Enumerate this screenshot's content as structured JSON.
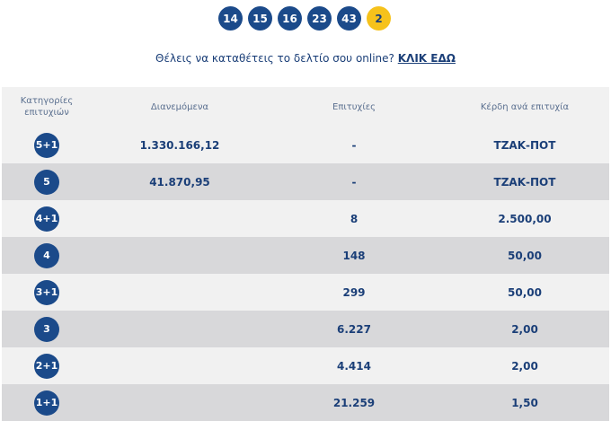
{
  "draw": {
    "numbers": [
      "14",
      "15",
      "16",
      "23",
      "43"
    ],
    "joker": "2"
  },
  "promo": {
    "text": "Θέλεις να καταθέτεις το δελτίο σου online? ",
    "link": "ΚΛΙΚ ΕΔΩ"
  },
  "table": {
    "headers": {
      "category": "Κατηγορίες επιτυχιών",
      "distributed": "Διανεμόμενα",
      "winners": "Επιτυχίες",
      "prize": "Κέρδη ανά επιτυχία"
    },
    "rows": [
      {
        "category": "5+1",
        "distributed": "1.330.166,12",
        "winners": "-",
        "prize": "ΤΖΑΚ-ΠΟΤ"
      },
      {
        "category": "5",
        "distributed": "41.870,95",
        "winners": "-",
        "prize": "ΤΖΑΚ-ΠΟΤ"
      },
      {
        "category": "4+1",
        "distributed": "",
        "winners": "8",
        "prize": "2.500,00"
      },
      {
        "category": "4",
        "distributed": "",
        "winners": "148",
        "prize": "50,00"
      },
      {
        "category": "3+1",
        "distributed": "",
        "winners": "299",
        "prize": "50,00"
      },
      {
        "category": "3",
        "distributed": "",
        "winners": "6.227",
        "prize": "2,00"
      },
      {
        "category": "2+1",
        "distributed": "",
        "winners": "4.414",
        "prize": "2,00"
      },
      {
        "category": "1+1",
        "distributed": "",
        "winners": "21.259",
        "prize": "1,50"
      }
    ]
  },
  "colors": {
    "ball": "#1b4a8a",
    "joker": "#f6c21b",
    "text": "#1b3f78",
    "row_light": "#f1f1f1",
    "row_dark": "#d8d8da"
  }
}
